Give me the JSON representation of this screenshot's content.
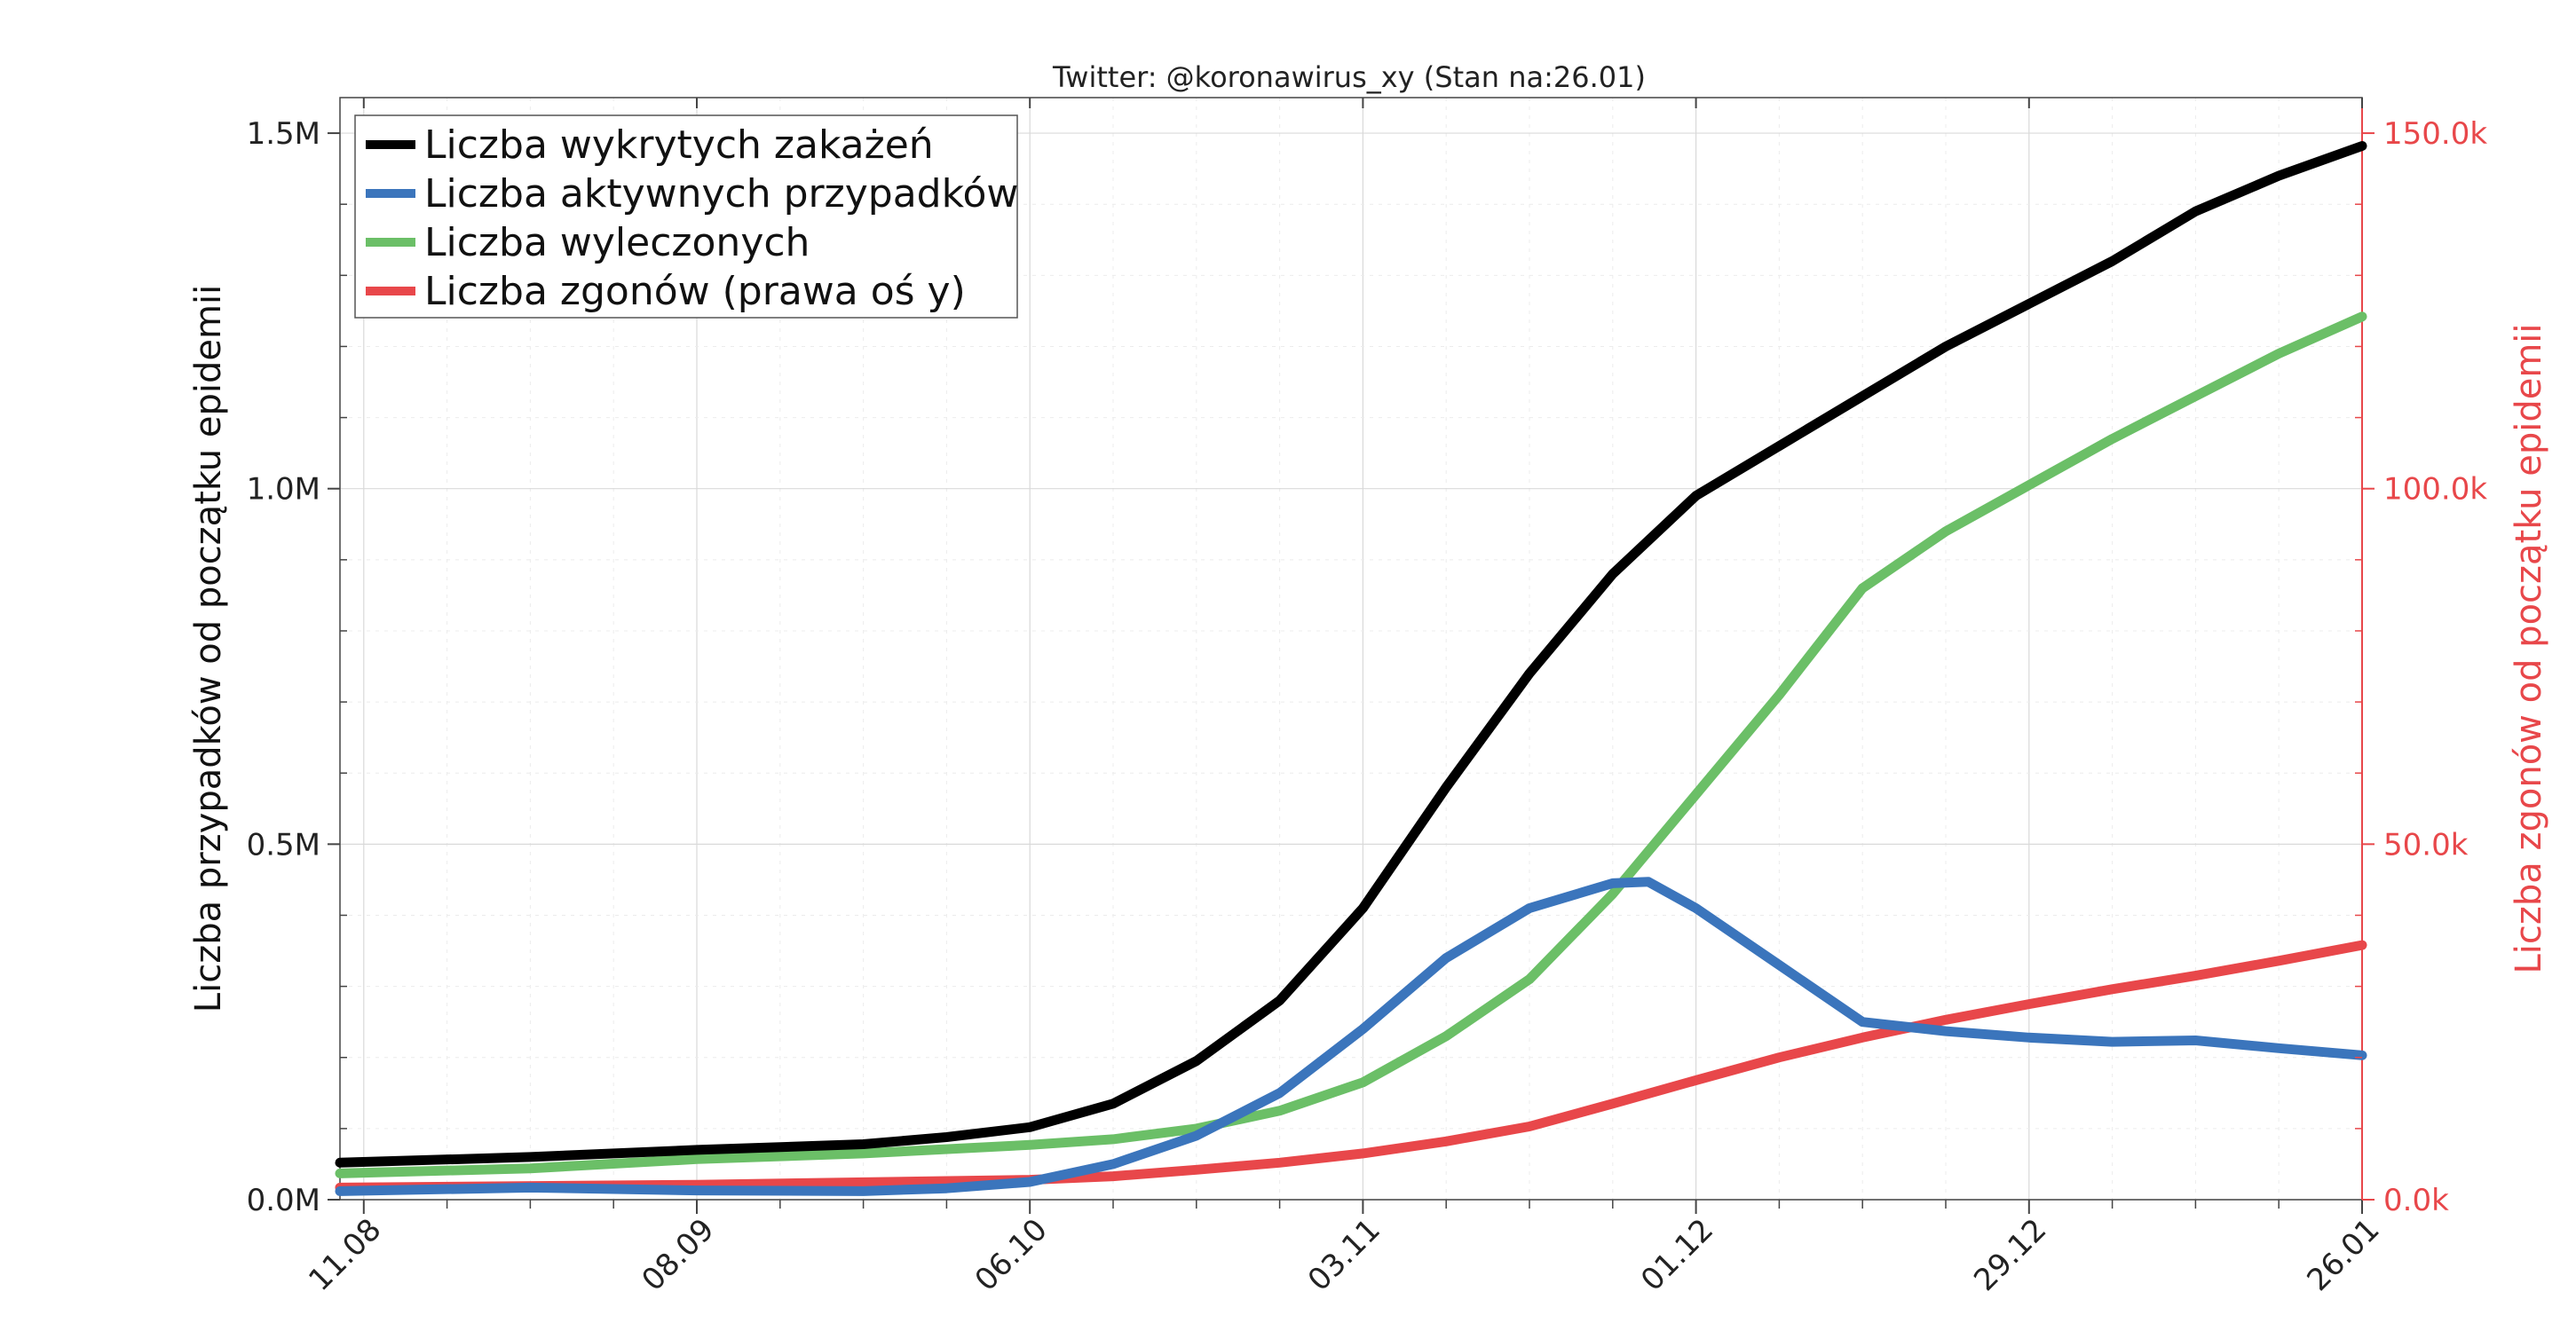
{
  "chart_data": {
    "type": "line",
    "title": "Twitter: @koronawirus_xy (Stan na:26.01)",
    "ylabel": "Liczba przypadków od początku epidemii",
    "ylabel_right": "Liczba zgonów od początku epidemii",
    "x_ticks": [
      "11.08",
      "08.09",
      "06.10",
      "03.11",
      "01.12",
      "29.12",
      "26.01"
    ],
    "x_range": [
      "2020-08-09",
      "2021-01-26"
    ],
    "ylim": [
      0,
      1550000
    ],
    "ylim_right": [
      0,
      155000
    ],
    "y_ticks": [
      {
        "value": 0,
        "label": "0.0M"
      },
      {
        "value": 500000,
        "label": "0.5M"
      },
      {
        "value": 1000000,
        "label": "1.0M"
      },
      {
        "value": 1500000,
        "label": "1.5M"
      }
    ],
    "y_ticks_right": [
      {
        "value": 0,
        "label": "0.0k"
      },
      {
        "value": 50000,
        "label": "50.0k"
      },
      {
        "value": 100000,
        "label": "100.0k"
      },
      {
        "value": 150000,
        "label": "150.0k"
      }
    ],
    "grid": true,
    "legend_position": "top-left",
    "series": [
      {
        "name": "Liczba wykrytych zakażeń",
        "color": "#000000",
        "axis": "left",
        "points": [
          [
            "2020-08-09",
            52000
          ],
          [
            "2020-08-25",
            60000
          ],
          [
            "2020-09-08",
            70000
          ],
          [
            "2020-09-22",
            78000
          ],
          [
            "2020-09-29",
            88000
          ],
          [
            "2020-10-06",
            102000
          ],
          [
            "2020-10-13",
            135000
          ],
          [
            "2020-10-20",
            195000
          ],
          [
            "2020-10-27",
            280000
          ],
          [
            "2020-11-03",
            410000
          ],
          [
            "2020-11-10",
            580000
          ],
          [
            "2020-11-17",
            740000
          ],
          [
            "2020-11-24",
            880000
          ],
          [
            "2020-12-01",
            990000
          ],
          [
            "2020-12-08",
            1060000
          ],
          [
            "2020-12-15",
            1130000
          ],
          [
            "2020-12-22",
            1200000
          ],
          [
            "2020-12-29",
            1260000
          ],
          [
            "2021-01-05",
            1320000
          ],
          [
            "2021-01-12",
            1390000
          ],
          [
            "2021-01-19",
            1440000
          ],
          [
            "2021-01-26",
            1482000
          ]
        ]
      },
      {
        "name": "Liczba aktywnych przypadków",
        "color": "#3b75bc",
        "axis": "left",
        "points": [
          [
            "2020-08-09",
            12000
          ],
          [
            "2020-08-25",
            17000
          ],
          [
            "2020-09-08",
            13000
          ],
          [
            "2020-09-22",
            12000
          ],
          [
            "2020-09-29",
            16000
          ],
          [
            "2020-10-06",
            25000
          ],
          [
            "2020-10-13",
            50000
          ],
          [
            "2020-10-20",
            90000
          ],
          [
            "2020-10-27",
            150000
          ],
          [
            "2020-11-03",
            240000
          ],
          [
            "2020-11-10",
            340000
          ],
          [
            "2020-11-17",
            410000
          ],
          [
            "2020-11-24",
            445000
          ],
          [
            "2020-11-27",
            447000
          ],
          [
            "2020-12-01",
            410000
          ],
          [
            "2020-12-08",
            330000
          ],
          [
            "2020-12-15",
            250000
          ],
          [
            "2020-12-22",
            237000
          ],
          [
            "2020-12-29",
            228000
          ],
          [
            "2021-01-05",
            222000
          ],
          [
            "2021-01-12",
            224000
          ],
          [
            "2021-01-19",
            213000
          ],
          [
            "2021-01-26",
            203000
          ]
        ]
      },
      {
        "name": "Liczba wyleczonych",
        "color": "#6bbf67",
        "axis": "left",
        "points": [
          [
            "2020-08-09",
            37000
          ],
          [
            "2020-08-25",
            44000
          ],
          [
            "2020-09-08",
            57000
          ],
          [
            "2020-09-22",
            65000
          ],
          [
            "2020-10-06",
            77000
          ],
          [
            "2020-10-13",
            85000
          ],
          [
            "2020-10-20",
            100000
          ],
          [
            "2020-10-27",
            125000
          ],
          [
            "2020-11-03",
            165000
          ],
          [
            "2020-11-10",
            230000
          ],
          [
            "2020-11-17",
            310000
          ],
          [
            "2020-11-24",
            430000
          ],
          [
            "2020-12-01",
            570000
          ],
          [
            "2020-12-08",
            710000
          ],
          [
            "2020-12-15",
            860000
          ],
          [
            "2020-12-22",
            940000
          ],
          [
            "2020-12-29",
            1005000
          ],
          [
            "2021-01-05",
            1070000
          ],
          [
            "2021-01-12",
            1130000
          ],
          [
            "2021-01-19",
            1190000
          ],
          [
            "2021-01-26",
            1242000
          ]
        ]
      },
      {
        "name": "Liczba zgonów (prawa oś y)",
        "color": "#e8474a",
        "axis": "right",
        "points": [
          [
            "2020-08-09",
            1700
          ],
          [
            "2020-09-08",
            2100
          ],
          [
            "2020-10-06",
            2800
          ],
          [
            "2020-10-13",
            3300
          ],
          [
            "2020-10-20",
            4200
          ],
          [
            "2020-10-27",
            5200
          ],
          [
            "2020-11-03",
            6500
          ],
          [
            "2020-11-10",
            8200
          ],
          [
            "2020-11-17",
            10300
          ],
          [
            "2020-11-24",
            13500
          ],
          [
            "2020-12-01",
            16800
          ],
          [
            "2020-12-08",
            20000
          ],
          [
            "2020-12-15",
            22800
          ],
          [
            "2020-12-22",
            25300
          ],
          [
            "2020-12-29",
            27500
          ],
          [
            "2021-01-05",
            29600
          ],
          [
            "2021-01-12",
            31500
          ],
          [
            "2021-01-19",
            33600
          ],
          [
            "2021-01-26",
            35800
          ]
        ]
      }
    ]
  }
}
